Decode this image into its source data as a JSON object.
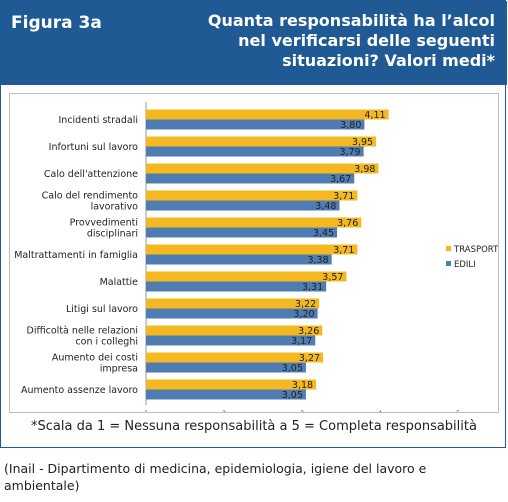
{
  "figure": {
    "label": "Figura 3a",
    "title": "Quanta responsabilità ha l’alcol nel verificarsi delle seguenti situazioni? Valori medi*"
  },
  "note": "*Scala da 1 = Nessuna responsabilità a 5 = Completa responsabilità",
  "source": "(Inail - Dipartimento di medicina, epidemiologia, igiene del lavoro e ambientale)",
  "colors": {
    "header": "#1f5a94",
    "trasporti": "#f4b820",
    "edili": "#4f7cb3"
  },
  "chart_data": {
    "type": "bar",
    "orientation": "horizontal",
    "categories": [
      [
        "Incidenti stradali"
      ],
      [
        "Infortuni sul lavoro"
      ],
      [
        "Calo dell'attenzione"
      ],
      [
        "Calo del rendimento",
        "lavorativo"
      ],
      [
        "Provvedimenti",
        "disciplinari"
      ],
      [
        "Maltrattamenti in famiglia"
      ],
      [
        "Malattie"
      ],
      [
        "Litigi sul lavoro"
      ],
      [
        "Difficoltà nelle relazioni",
        "con i colleghi"
      ],
      [
        "Aumento dei costi",
        "impresa"
      ],
      [
        "Aumento assenze lavoro"
      ]
    ],
    "series": [
      {
        "name": "TRASPORTI",
        "color": "#f4b820",
        "values": [
          4.11,
          3.95,
          3.98,
          3.71,
          3.76,
          3.71,
          3.57,
          3.22,
          3.26,
          3.27,
          3.18
        ],
        "labels": [
          "4,11",
          "3,95",
          "3,98",
          "3,71",
          "3,76",
          "3,71",
          "3,57",
          "3,22",
          "3,26",
          "3,27",
          "3,18"
        ]
      },
      {
        "name": "EDILI",
        "color": "#4f7cb3",
        "values": [
          3.8,
          3.79,
          3.67,
          3.48,
          3.45,
          3.38,
          3.31,
          3.2,
          3.17,
          3.05,
          3.05
        ],
        "labels": [
          "3,80",
          "3,79",
          "3,67",
          "3,48",
          "3,45",
          "3,38",
          "3,31",
          "3,20",
          "3,17",
          "3,05",
          "3,05"
        ]
      }
    ],
    "xlim": [
      1,
      5
    ],
    "xticks": [
      "1",
      "2",
      "3",
      "4",
      "5"
    ],
    "legend_position": "right"
  }
}
